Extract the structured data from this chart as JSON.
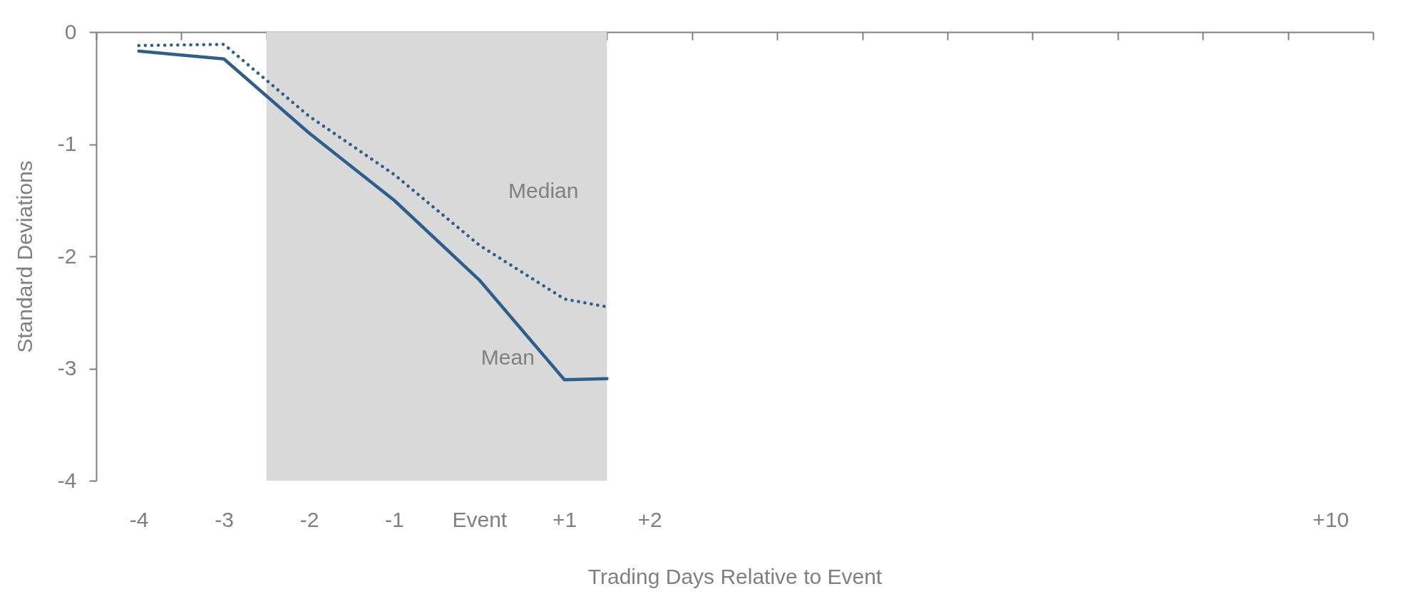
{
  "chart_data": {
    "type": "line",
    "xlabel": "Trading Days Relative to Event",
    "ylabel": "Standard  Deviations",
    "xlim": [
      -4.5,
      10.5
    ],
    "xticks": [
      -4,
      -3,
      -2,
      -1,
      {
        "value": 0,
        "label": "Event"
      },
      {
        "value": 1,
        "label": "+1"
      },
      {
        "value": 2,
        "label": "+2"
      },
      {
        "value": 10,
        "label": "+10"
      },
      {
        "value": -4.5,
        "label": null
      },
      {
        "value": -3.5,
        "label": null
      },
      {
        "value": -2.5,
        "label": null
      },
      {
        "value": -1.5,
        "label": null
      },
      {
        "value": -0.5,
        "label": null
      },
      {
        "value": 0.5,
        "label": null
      },
      {
        "value": 1.5,
        "label": null
      },
      {
        "value": 2.5,
        "label": null
      },
      {
        "value": 3.5,
        "label": null
      },
      {
        "value": 4.5,
        "label": null
      },
      {
        "value": 5.5,
        "label": null
      },
      {
        "value": 6.5,
        "label": null
      },
      {
        "value": 7.5,
        "label": null
      },
      {
        "value": 8.5,
        "label": null
      },
      {
        "value": 9.5,
        "label": null
      },
      {
        "value": 10.5,
        "label": null
      }
    ],
    "ylim": [
      -4,
      0
    ],
    "yticks": [
      -4,
      -3,
      -2,
      -1,
      0
    ],
    "x": [
      -4,
      -3,
      -2,
      -1,
      0,
      1,
      1.5
    ],
    "series": [
      {
        "name": "Mean",
        "color": "#2e5f8c",
        "line_style": "solid",
        "values": [
          -0.17,
          -0.24,
          -0.9,
          -1.5,
          -2.21,
          -3.1,
          -3.09
        ]
      },
      {
        "name": "Median",
        "color": "#2e5f8c",
        "line_style": "dotted",
        "values": [
          -0.12,
          -0.11,
          -0.75,
          -1.27,
          -1.9,
          -2.38,
          -2.45
        ]
      }
    ],
    "bands": [
      {
        "axis": "x",
        "from": -2.5,
        "to": 1.5,
        "color": "#d9d9d9"
      }
    ],
    "grid": false,
    "marker": "none"
  }
}
